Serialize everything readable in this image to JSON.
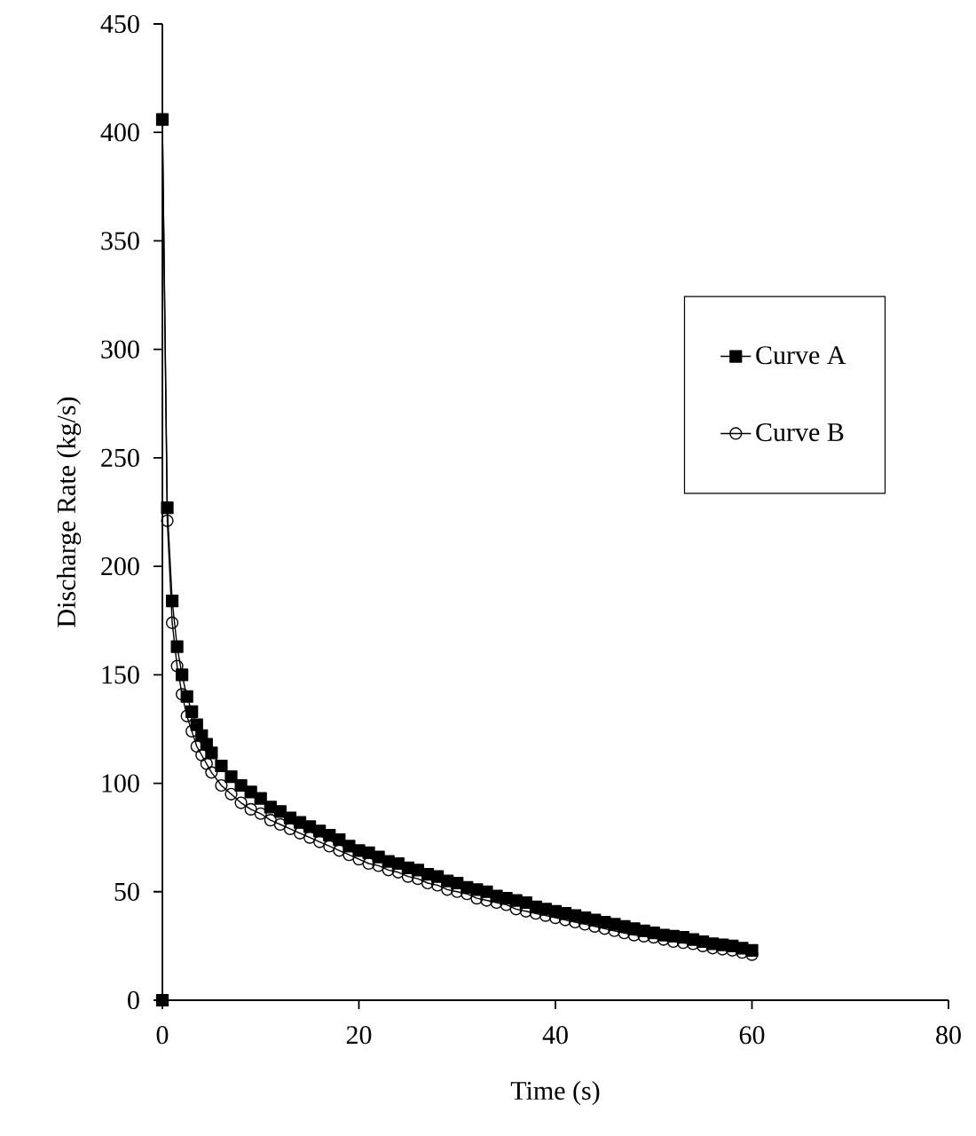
{
  "chart_data": {
    "type": "line",
    "xlabel": "Time (s)",
    "ylabel": "Discharge Rate (kg/s)",
    "xlim": [
      0,
      80
    ],
    "xticks": [
      0,
      20,
      40,
      60,
      80
    ],
    "ylim": [
      0,
      450
    ],
    "yticks": [
      0,
      50,
      100,
      150,
      200,
      250,
      300,
      350,
      400,
      450
    ],
    "grid": false,
    "legend": "right",
    "line_style": "solid",
    "series": [
      {
        "name": "Curve A",
        "color": "#000000",
        "marker": "square",
        "x": [
          0,
          0,
          0.5,
          1,
          1.5,
          2,
          2.5,
          3,
          3.5,
          4,
          4.5,
          5,
          6,
          7,
          8,
          9,
          10,
          11,
          12,
          13,
          14,
          15,
          16,
          17,
          18,
          19,
          20,
          21,
          22,
          23,
          24,
          25,
          26,
          27,
          28,
          29,
          30,
          31,
          32,
          33,
          34,
          35,
          36,
          37,
          38,
          39,
          40,
          41,
          42,
          43,
          44,
          45,
          46,
          47,
          48,
          49,
          50,
          51,
          52,
          53,
          54,
          55,
          56,
          57,
          58,
          59,
          60
        ],
        "values": [
          0,
          406,
          227,
          184,
          163,
          150,
          140,
          133,
          127,
          122,
          118,
          114,
          108,
          103,
          99,
          96,
          93,
          89,
          87,
          84,
          82,
          80,
          78,
          76,
          74,
          71,
          69,
          68,
          66,
          64,
          63,
          61,
          60,
          58,
          57,
          55,
          54,
          52,
          51,
          50,
          48,
          47,
          46,
          45,
          43,
          42,
          41,
          40,
          39,
          38,
          37,
          36,
          35,
          34,
          33,
          32,
          31,
          30,
          29.5,
          29,
          28,
          27,
          26,
          25.5,
          25,
          24,
          23
        ]
      },
      {
        "name": "Curve B",
        "color": "#000000",
        "marker": "circle",
        "x": [
          0,
          0,
          0.5,
          1,
          1.5,
          2,
          2.5,
          3,
          3.5,
          4,
          4.5,
          5,
          6,
          7,
          8,
          9,
          10,
          11,
          12,
          13,
          14,
          15,
          16,
          17,
          18,
          19,
          20,
          21,
          22,
          23,
          24,
          25,
          26,
          27,
          28,
          29,
          30,
          31,
          32,
          33,
          34,
          35,
          36,
          37,
          38,
          39,
          40,
          41,
          42,
          43,
          44,
          45,
          46,
          47,
          48,
          49,
          50,
          51,
          52,
          53,
          54,
          55,
          56,
          57,
          58,
          59,
          60
        ],
        "values": [
          0,
          406,
          221,
          174,
          154,
          141,
          131,
          124,
          117,
          113,
          109,
          105,
          99,
          95,
          91,
          88,
          86,
          83,
          81,
          79,
          77,
          75,
          73,
          71,
          69,
          67,
          65,
          63,
          62,
          60,
          59,
          57,
          56,
          54,
          53,
          51,
          50,
          49,
          47,
          46,
          45,
          44,
          42,
          41,
          40,
          39,
          38,
          37,
          36,
          35,
          34,
          33,
          32,
          31,
          30,
          29.5,
          29,
          28,
          27,
          26.5,
          26,
          25,
          24,
          23.5,
          23,
          22,
          21
        ]
      }
    ]
  }
}
